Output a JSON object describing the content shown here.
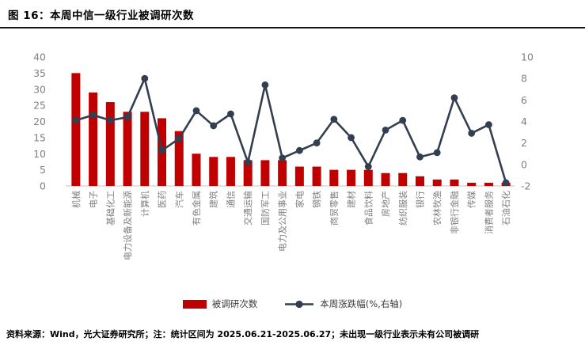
{
  "title": "图 16：本周中信一级行业被调研次数",
  "footer": "资料来源：Wind，光大证券研究所；注：统计区间为 2025.06.21-2025.06.27；未出现一级行业表示未有公司被调研",
  "legend": {
    "bar_label": "被调研次数",
    "line_label": "本周涨跌幅(%,右轴)"
  },
  "colors": {
    "bar": "#C00000",
    "line": "#333F50",
    "axis_text": "#7F7F7F",
    "baseline": "#D9D9D9",
    "title_rule": "#15151F"
  },
  "chart_data": {
    "type": "bar",
    "subtype": "bar-line-combo",
    "title": "本周中信一级行业被调研次数",
    "categories": [
      "机械",
      "电子",
      "基础化工",
      "电力设备及新能源",
      "计算机",
      "医药",
      "汽车",
      "有色金属",
      "建筑",
      "通信",
      "交通运输",
      "国防军工",
      "电力及公用事业",
      "家电",
      "钢铁",
      "商贸零售",
      "建材",
      "食品饮料",
      "房地产",
      "纺织服装",
      "银行",
      "农林牧渔",
      "非银行金融",
      "传媒",
      "消费者服务",
      "石油石化"
    ],
    "series": [
      {
        "name": "被调研次数",
        "type": "bar",
        "axis": "left",
        "values": [
          35,
          29,
          26,
          23,
          23,
          21,
          17,
          10,
          9,
          9,
          8,
          8,
          8,
          6,
          6,
          5,
          5,
          5,
          4,
          4,
          3,
          2,
          2,
          1,
          1,
          1
        ]
      },
      {
        "name": "本周涨跌幅(%,右轴)",
        "type": "line",
        "axis": "right",
        "values": [
          4.1,
          4.6,
          4.1,
          4.4,
          8.0,
          1.3,
          2.4,
          5.0,
          3.6,
          4.7,
          0.2,
          7.4,
          0.6,
          1.3,
          2.0,
          4.2,
          2.5,
          -0.2,
          3.2,
          4.1,
          0.7,
          1.1,
          6.2,
          2.9,
          3.7,
          -1.7
        ]
      }
    ],
    "left_axis": {
      "min": 0,
      "max": 40,
      "step": 5,
      "ticks": [
        0,
        5,
        10,
        15,
        20,
        25,
        30,
        35,
        40
      ]
    },
    "right_axis": {
      "min": -2,
      "max": 10,
      "step": 2,
      "ticks": [
        -2,
        0,
        2,
        4,
        6,
        8,
        10
      ]
    },
    "grid": false,
    "legend_position": "bottom"
  }
}
